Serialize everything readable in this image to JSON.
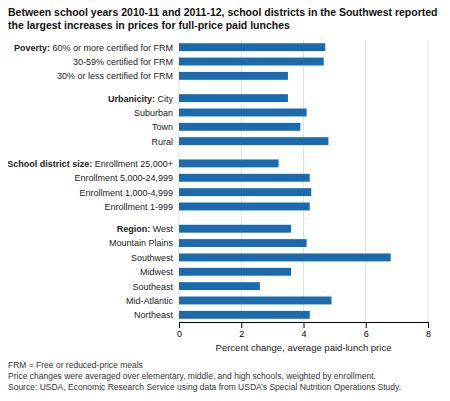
{
  "chart_data": {
    "type": "bar",
    "orientation": "horizontal",
    "title": "Between school years 2010-11 and 2011-12, school districts in the Southwest reported the largest increases in prices for full-price paid lunches",
    "x_label": "Percent change, average paid-lunch price",
    "color": "#1a6aad",
    "categories": [
      "Poverty: 60% or more certified for FRM",
      "30-59% certified for FRM",
      "30% or less certified for FRM",
      "Urbanicity: City",
      "Suburban",
      "Town",
      "Rural",
      "School district size: Enrollment 25,000+",
      "Enrollment 5,000-24,999",
      "Enrollment 1,000-4,999",
      "Enrollment 1-999",
      "Region: West",
      "Mountain Plains",
      "Southwest",
      "Midwest",
      "Southeast",
      "Mid-Atlantic",
      "Northeast"
    ],
    "values": [
      4.7,
      4.65,
      3.5,
      3.5,
      4.1,
      3.9,
      4.8,
      3.2,
      4.2,
      4.25,
      4.2,
      3.6,
      4.1,
      6.8,
      3.6,
      2.6,
      4.9,
      4.2
    ],
    "xlim": [
      0,
      8
    ],
    "xticks": [
      0,
      2,
      4,
      6,
      8
    ],
    "grid": true,
    "annotations": [
      "FRM = Free or reduced-price meals",
      "Price changes were averaged over elementary, middle, and high schools, weighted by enrollment.",
      "Source: USDA, Economic Research Service using data from USDA’s Special Nutrition Operations Study."
    ]
  }
}
